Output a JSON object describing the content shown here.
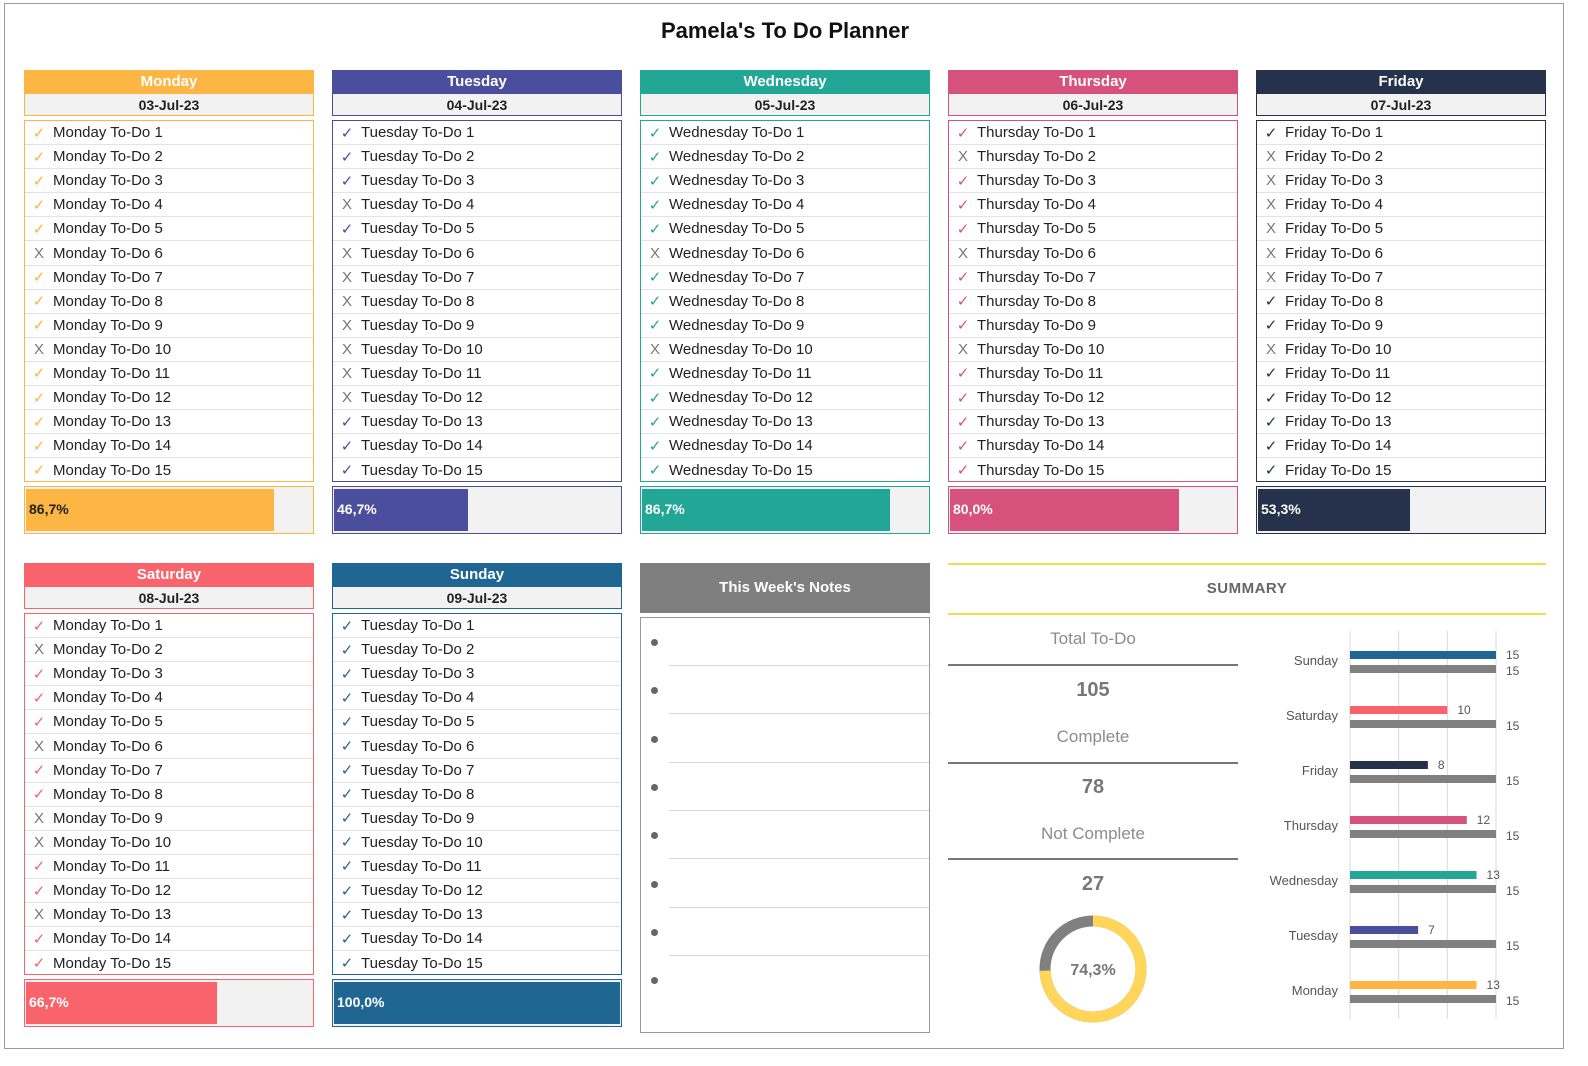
{
  "title": "Pamela's To Do Planner",
  "colors": {
    "monday": "#fdb544",
    "tuesday": "#4a4e9d",
    "wednesday": "#22a696",
    "thursday": "#d6527c",
    "friday": "#26324b",
    "saturday": "#f9636b",
    "sunday": "#1f6792",
    "complete_bar": "#808080",
    "donut_fill": "#ffd65a",
    "donut_rest": "#808080"
  },
  "days": [
    {
      "key": "monday",
      "name": "Monday",
      "date": "03-Jul-23",
      "color": "#fdb544",
      "progress": "86,7%",
      "progress_value": 0.867,
      "tasks": [
        [
          "✓",
          "Monday To-Do 1"
        ],
        [
          "✓",
          "Monday To-Do 2"
        ],
        [
          "✓",
          "Monday To-Do 3"
        ],
        [
          "✓",
          "Monday To-Do 4"
        ],
        [
          "✓",
          "Monday To-Do 5"
        ],
        [
          "X",
          "Monday To-Do 6"
        ],
        [
          "✓",
          "Monday To-Do 7"
        ],
        [
          "✓",
          "Monday To-Do 8"
        ],
        [
          "✓",
          "Monday To-Do 9"
        ],
        [
          "X",
          "Monday To-Do 10"
        ],
        [
          "✓",
          "Monday To-Do 11"
        ],
        [
          "✓",
          "Monday To-Do 12"
        ],
        [
          "✓",
          "Monday To-Do 13"
        ],
        [
          "✓",
          "Monday To-Do 14"
        ],
        [
          "✓",
          "Monday To-Do 15"
        ]
      ]
    },
    {
      "key": "tuesday",
      "name": "Tuesday",
      "date": "04-Jul-23",
      "color": "#4a4e9d",
      "progress": "46,7%",
      "progress_value": 0.467,
      "tasks": [
        [
          "✓",
          "Tuesday To-Do 1"
        ],
        [
          "✓",
          "Tuesday To-Do 2"
        ],
        [
          "✓",
          "Tuesday To-Do 3"
        ],
        [
          "X",
          "Tuesday To-Do 4"
        ],
        [
          "✓",
          "Tuesday To-Do 5"
        ],
        [
          "X",
          "Tuesday To-Do 6"
        ],
        [
          "X",
          "Tuesday To-Do 7"
        ],
        [
          "X",
          "Tuesday To-Do 8"
        ],
        [
          "X",
          "Tuesday To-Do 9"
        ],
        [
          "X",
          "Tuesday To-Do 10"
        ],
        [
          "X",
          "Tuesday To-Do 11"
        ],
        [
          "X",
          "Tuesday To-Do 12"
        ],
        [
          "✓",
          "Tuesday To-Do 13"
        ],
        [
          "✓",
          "Tuesday To-Do 14"
        ],
        [
          "✓",
          "Tuesday To-Do 15"
        ]
      ]
    },
    {
      "key": "wednesday",
      "name": "Wednesday",
      "date": "05-Jul-23",
      "color": "#22a696",
      "progress": "86,7%",
      "progress_value": 0.867,
      "tasks": [
        [
          "✓",
          "Wednesday To-Do 1"
        ],
        [
          "✓",
          "Wednesday To-Do 2"
        ],
        [
          "✓",
          "Wednesday To-Do 3"
        ],
        [
          "✓",
          "Wednesday To-Do 4"
        ],
        [
          "✓",
          "Wednesday To-Do 5"
        ],
        [
          "X",
          "Wednesday To-Do 6"
        ],
        [
          "✓",
          "Wednesday To-Do 7"
        ],
        [
          "✓",
          "Wednesday To-Do 8"
        ],
        [
          "✓",
          "Wednesday To-Do 9"
        ],
        [
          "X",
          "Wednesday To-Do 10"
        ],
        [
          "✓",
          "Wednesday To-Do 11"
        ],
        [
          "✓",
          "Wednesday To-Do 12"
        ],
        [
          "✓",
          "Wednesday To-Do 13"
        ],
        [
          "✓",
          "Wednesday To-Do 14"
        ],
        [
          "✓",
          "Wednesday To-Do 15"
        ]
      ]
    },
    {
      "key": "thursday",
      "name": "Thursday",
      "date": "06-Jul-23",
      "color": "#d6527c",
      "progress": "80,0%",
      "progress_value": 0.8,
      "tasks": [
        [
          "✓",
          "Thursday To-Do 1"
        ],
        [
          "X",
          "Thursday To-Do 2"
        ],
        [
          "✓",
          "Thursday To-Do 3"
        ],
        [
          "✓",
          "Thursday To-Do 4"
        ],
        [
          "✓",
          "Thursday To-Do 5"
        ],
        [
          "X",
          "Thursday To-Do 6"
        ],
        [
          "✓",
          "Thursday To-Do 7"
        ],
        [
          "✓",
          "Thursday To-Do 8"
        ],
        [
          "✓",
          "Thursday To-Do 9"
        ],
        [
          "X",
          "Thursday To-Do 10"
        ],
        [
          "✓",
          "Thursday To-Do 11"
        ],
        [
          "✓",
          "Thursday To-Do 12"
        ],
        [
          "✓",
          "Thursday To-Do 13"
        ],
        [
          "✓",
          "Thursday To-Do 14"
        ],
        [
          "✓",
          "Thursday To-Do 15"
        ]
      ]
    },
    {
      "key": "friday",
      "name": "Friday",
      "date": "07-Jul-23",
      "color": "#26324b",
      "progress": "53,3%",
      "progress_value": 0.533,
      "tasks": [
        [
          "✓",
          "Friday To-Do 1"
        ],
        [
          "X",
          "Friday To-Do 2"
        ],
        [
          "X",
          "Friday To-Do 3"
        ],
        [
          "X",
          "Friday To-Do 4"
        ],
        [
          "X",
          "Friday To-Do 5"
        ],
        [
          "X",
          "Friday To-Do 6"
        ],
        [
          "X",
          "Friday To-Do 7"
        ],
        [
          "✓",
          "Friday To-Do 8"
        ],
        [
          "✓",
          "Friday To-Do 9"
        ],
        [
          "X",
          "Friday To-Do 10"
        ],
        [
          "✓",
          "Friday To-Do 11"
        ],
        [
          "✓",
          "Friday To-Do 12"
        ],
        [
          "✓",
          "Friday To-Do 13"
        ],
        [
          "✓",
          "Friday To-Do 14"
        ],
        [
          "✓",
          "Friday To-Do 15"
        ]
      ]
    },
    {
      "key": "saturday",
      "name": "Saturday",
      "date": "08-Jul-23",
      "color": "#f9636b",
      "progress": "66,7%",
      "progress_value": 0.667,
      "tasks": [
        [
          "✓",
          "Monday To-Do 1"
        ],
        [
          "X",
          "Monday To-Do 2"
        ],
        [
          "✓",
          "Monday To-Do 3"
        ],
        [
          "✓",
          "Monday To-Do 4"
        ],
        [
          "✓",
          "Monday To-Do 5"
        ],
        [
          "X",
          "Monday To-Do 6"
        ],
        [
          "✓",
          "Monday To-Do 7"
        ],
        [
          "✓",
          "Monday To-Do 8"
        ],
        [
          "X",
          "Monday To-Do 9"
        ],
        [
          "X",
          "Monday To-Do 10"
        ],
        [
          "✓",
          "Monday To-Do 11"
        ],
        [
          "✓",
          "Monday To-Do 12"
        ],
        [
          "X",
          "Monday To-Do 13"
        ],
        [
          "✓",
          "Monday To-Do 14"
        ],
        [
          "✓",
          "Monday To-Do 15"
        ]
      ]
    },
    {
      "key": "sunday",
      "name": "Sunday",
      "date": "09-Jul-23",
      "color": "#1f6792",
      "progress": "100,0%",
      "progress_value": 1.0,
      "tasks": [
        [
          "✓",
          "Tuesday To-Do 1"
        ],
        [
          "✓",
          "Tuesday To-Do 2"
        ],
        [
          "✓",
          "Tuesday To-Do 3"
        ],
        [
          "✓",
          "Tuesday To-Do 4"
        ],
        [
          "✓",
          "Tuesday To-Do 5"
        ],
        [
          "✓",
          "Tuesday To-Do 6"
        ],
        [
          "✓",
          "Tuesday To-Do 7"
        ],
        [
          "✓",
          "Tuesday To-Do 8"
        ],
        [
          "✓",
          "Tuesday To-Do 9"
        ],
        [
          "✓",
          "Tuesday To-Do 10"
        ],
        [
          "✓",
          "Tuesday To-Do 11"
        ],
        [
          "✓",
          "Tuesday To-Do 12"
        ],
        [
          "✓",
          "Tuesday To-Do 13"
        ],
        [
          "✓",
          "Tuesday To-Do 14"
        ],
        [
          "✓",
          "Tuesday To-Do 15"
        ]
      ]
    }
  ],
  "notes": {
    "title": "This Week's Notes",
    "bullet_count": 8
  },
  "summary": {
    "title": "SUMMARY",
    "total_label": "Total To-Do",
    "total_value": "105",
    "complete_label": "Complete",
    "complete_value": "78",
    "not_complete_label": "Not Complete",
    "not_complete_value": "27",
    "donut_label": "74,3%",
    "donut_value": 0.743
  },
  "chart_data": {
    "type": "bar",
    "orientation": "horizontal",
    "categories": [
      "Sunday",
      "Saturday",
      "Friday",
      "Thursday",
      "Wednesday",
      "Tuesday",
      "Monday"
    ],
    "series": [
      {
        "values": [
          15,
          10,
          8,
          12,
          13,
          7,
          13
        ],
        "colors": [
          "#1f6792",
          "#f9636b",
          "#26324b",
          "#d6527c",
          "#22a696",
          "#4a4e9d",
          "#fdb544"
        ]
      },
      {
        "values": [
          15,
          15,
          15,
          15,
          15,
          15,
          15
        ],
        "color": "#808080"
      }
    ],
    "xlim": [
      0,
      15
    ],
    "grid": true,
    "title": "",
    "xlabel": "",
    "ylabel": ""
  }
}
